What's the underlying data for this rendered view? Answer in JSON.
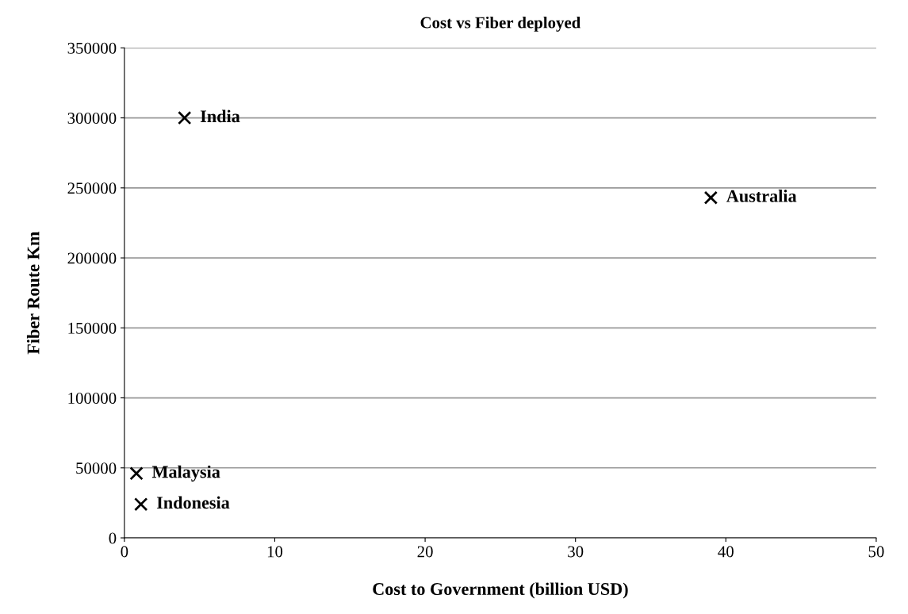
{
  "chart_data": {
    "type": "scatter",
    "title": "Cost vs Fiber deployed",
    "xlabel": "Cost to Government (billion USD)",
    "ylabel": "Fiber Route Km",
    "x": [
      4,
      39,
      0.8,
      1.1
    ],
    "series": [
      {
        "color": "#000000",
        "values": [
          300000,
          243000,
          46000,
          24000
        ]
      }
    ],
    "marker": "cross",
    "grid": "y",
    "xlim": [
      0,
      50
    ],
    "xticks": [
      0,
      10,
      20,
      30,
      40,
      50
    ],
    "ylim": [
      0,
      350000
    ],
    "yticks": [
      0,
      50000,
      100000,
      150000,
      200000,
      250000,
      300000,
      350000
    ],
    "annotations": [
      {
        "text": "India",
        "x": 4,
        "y": 300000
      },
      {
        "text": "Australia",
        "x": 39,
        "y": 243000
      },
      {
        "text": "Malaysia",
        "x": 0.8,
        "y": 46000
      },
      {
        "text": "Indonesia",
        "x": 1.1,
        "y": 24000
      }
    ]
  }
}
